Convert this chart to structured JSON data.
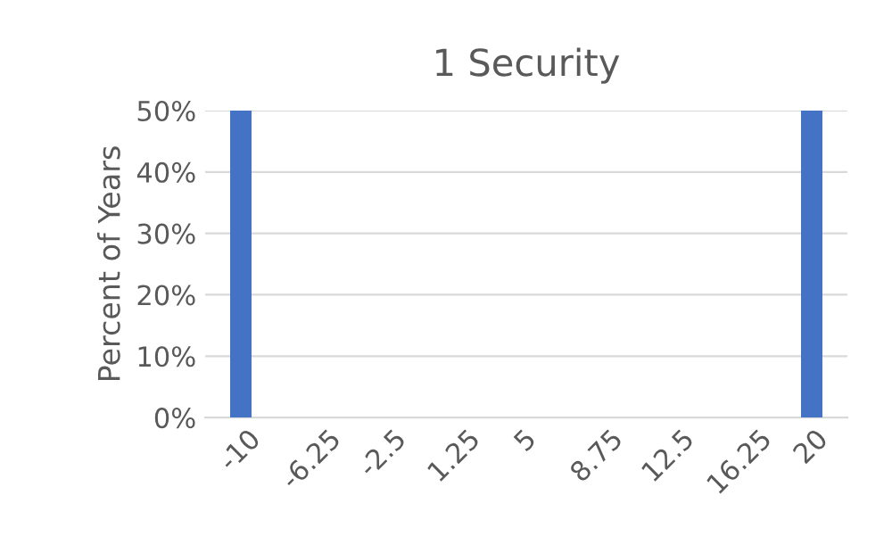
{
  "chart_data": {
    "type": "bar",
    "title": "1 Security",
    "ylabel": "Percent of Years",
    "categories": [
      "-10",
      "-6.25",
      "-2.5",
      "1.25",
      "5",
      "8.75",
      "12.5",
      "16.25",
      "20"
    ],
    "values": [
      50,
      0,
      0,
      0,
      0,
      0,
      0,
      0,
      50
    ],
    "color": "#4472c4",
    "ylim": [
      0,
      50
    ],
    "yticks": [
      {
        "value": 0,
        "label": "0%"
      },
      {
        "value": 10,
        "label": "10%"
      },
      {
        "value": 20,
        "label": "20%"
      },
      {
        "value": 30,
        "label": "30%"
      },
      {
        "value": 40,
        "label": "40%"
      },
      {
        "value": 50,
        "label": "50%"
      }
    ],
    "grid": "y",
    "legend": false
  }
}
